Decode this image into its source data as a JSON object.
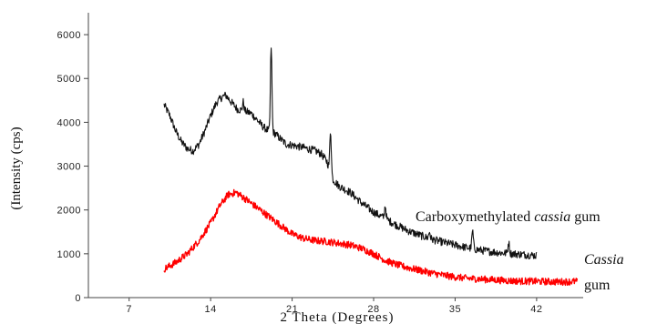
{
  "chart_data": {
    "type": "line",
    "title": "",
    "xlabel": "2 Theta (Degrees)",
    "ylabel": "(Intensity (cps)",
    "xlim": [
      3.5,
      46
    ],
    "ylim": [
      0,
      6500
    ],
    "x_ticks": [
      7,
      14,
      21,
      28,
      35,
      42
    ],
    "y_ticks": [
      0,
      1000,
      2000,
      3000,
      4000,
      5000,
      6000
    ],
    "grid": false,
    "legend": "none",
    "series": [
      {
        "label_parts": [
          {
            "text": "Carboxymethylated ",
            "italic": false
          },
          {
            "text": "cassia",
            "italic": true
          },
          {
            "text": " gum",
            "italic": false
          }
        ],
        "color": "#111111",
        "points": [
          [
            10,
            4400
          ],
          [
            10.5,
            4150
          ],
          [
            11,
            3800
          ],
          [
            11.5,
            3550
          ],
          [
            12,
            3400
          ],
          [
            12.5,
            3350
          ],
          [
            13,
            3500
          ],
          [
            13.5,
            3800
          ],
          [
            14,
            4150
          ],
          [
            14.5,
            4450
          ],
          [
            15,
            4580
          ],
          [
            15.3,
            4620
          ],
          [
            15.8,
            4450
          ],
          [
            16.3,
            4300
          ],
          [
            17,
            4250
          ],
          [
            17.5,
            4200
          ],
          [
            18,
            4050
          ],
          [
            18.5,
            3900
          ],
          [
            19,
            3800
          ],
          [
            19.5,
            3750
          ],
          [
            20,
            3620
          ],
          [
            20.5,
            3500
          ],
          [
            21,
            3480
          ],
          [
            22,
            3420
          ],
          [
            23,
            3350
          ],
          [
            23.5,
            3280
          ],
          [
            24,
            3100
          ],
          [
            24.5,
            2700
          ],
          [
            25,
            2550
          ],
          [
            26,
            2400
          ],
          [
            27,
            2150
          ],
          [
            28,
            1950
          ],
          [
            29,
            1800
          ],
          [
            30,
            1650
          ],
          [
            31,
            1520
          ],
          [
            32,
            1420
          ],
          [
            33,
            1330
          ],
          [
            34,
            1260
          ],
          [
            35,
            1200
          ],
          [
            36,
            1140
          ],
          [
            37,
            1090
          ],
          [
            38,
            1050
          ],
          [
            39,
            1020
          ],
          [
            40,
            1000
          ],
          [
            41,
            980
          ],
          [
            42,
            960
          ]
        ],
        "peaks": [
          {
            "x": 16.8,
            "height": 200
          },
          {
            "x": 19.2,
            "height": 1950
          },
          {
            "x": 24.3,
            "height": 950
          },
          {
            "x": 29,
            "height": 300
          },
          {
            "x": 32.8,
            "height": 150
          },
          {
            "x": 36.5,
            "height": 400
          },
          {
            "x": 39.6,
            "height": 250
          }
        ],
        "noise": 90
      },
      {
        "label_parts": [
          {
            "text": "Cassia",
            "italic": true
          },
          {
            "text": "gum",
            "italic": false
          }
        ],
        "color": "#ff0000",
        "points": [
          [
            10,
            650
          ],
          [
            11,
            800
          ],
          [
            12,
            1000
          ],
          [
            13,
            1300
          ],
          [
            14,
            1700
          ],
          [
            14.8,
            2100
          ],
          [
            15.5,
            2350
          ],
          [
            16.2,
            2400
          ],
          [
            17,
            2250
          ],
          [
            18,
            2050
          ],
          [
            19,
            1850
          ],
          [
            20,
            1650
          ],
          [
            21,
            1450
          ],
          [
            22,
            1350
          ],
          [
            23,
            1300
          ],
          [
            24,
            1280
          ],
          [
            25,
            1240
          ],
          [
            26,
            1200
          ],
          [
            27,
            1120
          ],
          [
            28,
            1000
          ],
          [
            29,
            850
          ],
          [
            30,
            750
          ],
          [
            31,
            680
          ],
          [
            32,
            620
          ],
          [
            33,
            560
          ],
          [
            34,
            510
          ],
          [
            35,
            470
          ],
          [
            36,
            440
          ],
          [
            38,
            410
          ],
          [
            40,
            380
          ],
          [
            42,
            370
          ],
          [
            44,
            360
          ],
          [
            45.5,
            370
          ]
        ],
        "peaks": [],
        "noise": 80
      }
    ]
  }
}
